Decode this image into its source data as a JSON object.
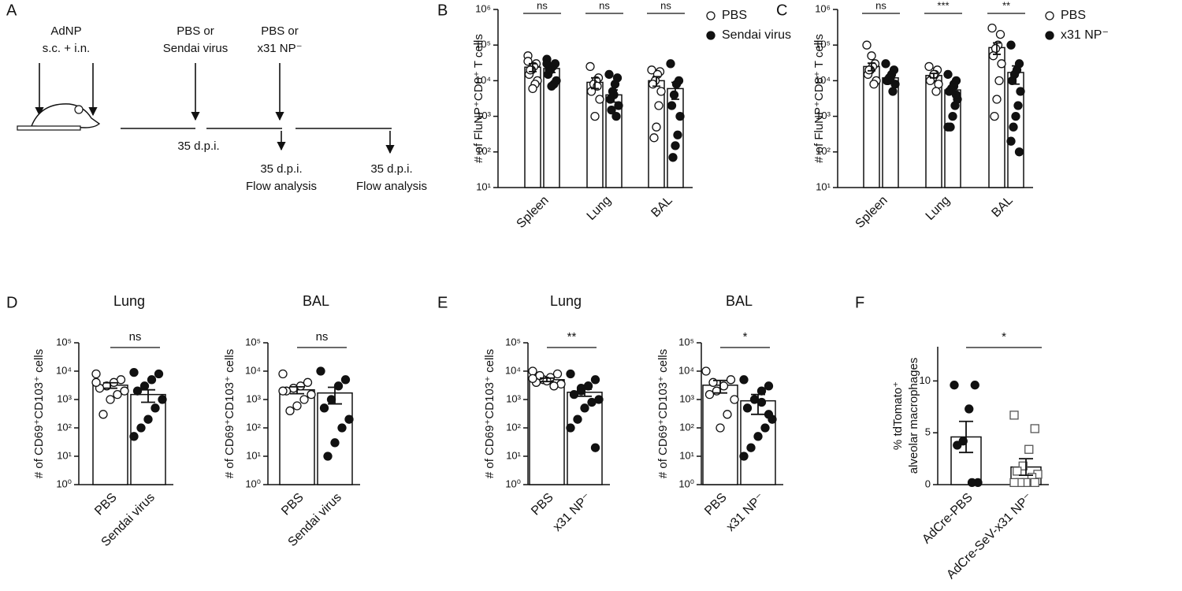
{
  "diagram": {
    "label": "A",
    "prime": [
      "AdNP",
      "s.c. + i.n."
    ],
    "challenge1": [
      "PBS or",
      "Sendai virus"
    ],
    "challenge2": [
      "PBS or",
      "x31 NP⁻"
    ],
    "interval": "35 d.p.i.",
    "readout1": [
      "35 d.p.i.",
      "Flow analysis"
    ],
    "readout2": [
      "35 d.p.i.",
      "Flow analysis"
    ]
  },
  "chart_data": [
    {
      "type": "bar",
      "label": "B",
      "ylabel": "# of FluNP⁺CD8⁺ T cells",
      "log": true,
      "legend": "right",
      "categories": [
        "Spleen",
        "Lung",
        "BAL"
      ],
      "significance": [
        "ns",
        "ns",
        "ns"
      ],
      "ylim": [
        10,
        1000000
      ],
      "yticks": [
        {
          "value": 10,
          "label": "10¹"
        },
        {
          "value": 100,
          "label": "10²"
        },
        {
          "value": 1000,
          "label": "10³"
        },
        {
          "value": 10000,
          "label": "10⁴"
        },
        {
          "value": 100000,
          "label": "10⁵"
        },
        {
          "value": 1000000,
          "label": "10⁶"
        }
      ],
      "series": [
        {
          "name": "PBS",
          "marker": "open-circle",
          "values": [
            24000,
            9000,
            10000
          ],
          "errors": [
            6000,
            3000,
            3000
          ],
          "points": [
            [
              50000,
              30000,
              25000,
              20000,
              15000,
              10000,
              8000,
              6000,
              20000,
              35000
            ],
            [
              25000,
              12000,
              10000,
              8000,
              5000,
              3000,
              7000,
              1000
            ],
            [
              20000,
              18000,
              15000,
              10000,
              8000,
              5000,
              2000,
              500,
              250
            ]
          ]
        },
        {
          "name": "Sendai virus",
          "marker": "filled-circle",
          "values": [
            22000,
            4000,
            6000
          ],
          "errors": [
            5000,
            1500,
            3000
          ],
          "points": [
            [
              40000,
              30000,
              25000,
              20000,
              15000,
              10000,
              8000,
              7000,
              20000,
              30000
            ],
            [
              15000,
              12000,
              8000,
              5000,
              3000,
              2000,
              1000,
              4000,
              1500
            ],
            [
              30000,
              10000,
              8000,
              4000,
              2000,
              1000,
              300,
              150,
              70
            ]
          ]
        }
      ]
    },
    {
      "type": "bar",
      "label": "C",
      "ylabel": "# of FluNP⁺CD8⁺ T cells",
      "log": true,
      "legend": "right",
      "categories": [
        "Spleen",
        "Lung",
        "BAL"
      ],
      "significance": [
        "ns",
        "***",
        "**"
      ],
      "ylim": [
        10,
        1000000
      ],
      "yticks": [
        {
          "value": 10,
          "label": "10¹"
        },
        {
          "value": 100,
          "label": "10²"
        },
        {
          "value": 1000,
          "label": "10³"
        },
        {
          "value": 10000,
          "label": "10⁴"
        },
        {
          "value": 100000,
          "label": "10⁵"
        },
        {
          "value": 1000000,
          "label": "10⁶"
        }
      ],
      "series": [
        {
          "name": "PBS",
          "marker": "open-circle",
          "values": [
            25000,
            14000,
            85000
          ],
          "errors": [
            6000,
            2000,
            30000
          ],
          "points": [
            [
              100000,
              30000,
              25000,
              20000,
              15000,
              10000,
              8000,
              50000,
              20000
            ],
            [
              25000,
              20000,
              15000,
              12000,
              10000,
              8000,
              5000,
              15000
            ],
            [
              300000,
              200000,
              100000,
              80000,
              50000,
              30000,
              10000,
              3000,
              1000
            ]
          ]
        },
        {
          "name": "x31 NP⁻",
          "marker": "filled-circle",
          "values": [
            12000,
            5500,
            17000
          ],
          "errors": [
            2000,
            1200,
            9000
          ],
          "points": [
            [
              30000,
              20000,
              15000,
              12000,
              10000,
              8000,
              5000,
              12000,
              10000
            ],
            [
              15000,
              10000,
              8000,
              6000,
              5000,
              3000,
              2000,
              1000,
              500,
              500,
              4000,
              7000
            ],
            [
              100000,
              30000,
              20000,
              15000,
              10000,
              5000,
              2000,
              1000,
              500,
              200,
              100
            ]
          ]
        }
      ]
    },
    {
      "type": "bar",
      "label": "D",
      "title": "Lung",
      "ylabel": "# of CD69⁺CD103⁺ cells",
      "log": true,
      "categories": [
        "PBS",
        "Sendai virus"
      ],
      "significance": "ns",
      "markers": [
        "open-circle",
        "filled-circle"
      ],
      "ylim": [
        1,
        100000
      ],
      "yticks": [
        {
          "value": 1,
          "label": "10⁰"
        },
        {
          "value": 10,
          "label": "10¹"
        },
        {
          "value": 100,
          "label": "10²"
        },
        {
          "value": 1000,
          "label": "10³"
        },
        {
          "value": 10000,
          "label": "10⁴"
        },
        {
          "value": 100000,
          "label": "10⁵"
        }
      ],
      "values": [
        3200,
        1500
      ],
      "errors": [
        700,
        700
      ],
      "points": [
        [
          8000,
          5000,
          4000,
          3000,
          2500,
          2000,
          1500,
          1000,
          300,
          4000
        ],
        [
          9000,
          8000,
          5000,
          3000,
          2000,
          1000,
          500,
          200,
          100,
          50
        ]
      ]
    },
    {
      "type": "bar",
      "title": "BAL",
      "ylabel": "# of CD69⁺CD103⁺ cells",
      "log": true,
      "categories": [
        "PBS",
        "Sendai virus"
      ],
      "significance": "ns",
      "markers": [
        "open-circle",
        "filled-circle"
      ],
      "ylim": [
        1,
        100000
      ],
      "yticks": [
        {
          "value": 1,
          "label": "10⁰"
        },
        {
          "value": 10,
          "label": "10¹"
        },
        {
          "value": 100,
          "label": "10²"
        },
        {
          "value": 1000,
          "label": "10³"
        },
        {
          "value": 10000,
          "label": "10⁴"
        },
        {
          "value": 100000,
          "label": "10⁵"
        }
      ],
      "values": [
        2200,
        1700
      ],
      "errors": [
        600,
        1000
      ],
      "points": [
        [
          8000,
          4000,
          3000,
          2500,
          2000,
          1500,
          1000,
          600,
          400,
          2000
        ],
        [
          10000,
          5000,
          3000,
          1000,
          500,
          200,
          100,
          30,
          10
        ]
      ]
    },
    {
      "type": "bar",
      "label": "E",
      "title": "Lung",
      "ylabel": "# of CD69⁺CD103⁺ cells",
      "log": true,
      "categories": [
        "PBS",
        "x31 NP⁻"
      ],
      "significance": "**",
      "markers": [
        "open-circle",
        "filled-circle"
      ],
      "ylim": [
        1,
        100000
      ],
      "yticks": [
        {
          "value": 1,
          "label": "10⁰"
        },
        {
          "value": 10,
          "label": "10¹"
        },
        {
          "value": 100,
          "label": "10²"
        },
        {
          "value": 1000,
          "label": "10³"
        },
        {
          "value": 10000,
          "label": "10⁴"
        },
        {
          "value": 100000,
          "label": "10⁵"
        }
      ],
      "values": [
        5000,
        1800
      ],
      "errors": [
        700,
        500
      ],
      "points": [
        [
          10000,
          8000,
          6000,
          5000,
          4000,
          3500,
          3000,
          4500,
          7000,
          5500
        ],
        [
          8000,
          5000,
          3000,
          2000,
          1500,
          1000,
          800,
          500,
          200,
          100,
          20,
          3000,
          2500
        ]
      ]
    },
    {
      "type": "bar",
      "title": "BAL",
      "ylabel": "# of CD69⁺CD103⁺ cells",
      "log": true,
      "categories": [
        "PBS",
        "x31 NP⁻"
      ],
      "significance": "*",
      "markers": [
        "open-circle",
        "filled-circle"
      ],
      "ylim": [
        1,
        100000
      ],
      "yticks": [
        {
          "value": 1,
          "label": "10⁰"
        },
        {
          "value": 10,
          "label": "10¹"
        },
        {
          "value": 100,
          "label": "10²"
        },
        {
          "value": 1000,
          "label": "10³"
        },
        {
          "value": 10000,
          "label": "10⁴"
        },
        {
          "value": 100000,
          "label": "10⁵"
        }
      ],
      "values": [
        3200,
        900
      ],
      "errors": [
        1500,
        600
      ],
      "points": [
        [
          10000,
          5000,
          3000,
          2000,
          1500,
          1000,
          300,
          100,
          4000
        ],
        [
          5000,
          3000,
          2000,
          1000,
          500,
          200,
          100,
          50,
          20,
          10,
          300,
          800
        ]
      ]
    },
    {
      "type": "bar",
      "label": "F",
      "ylabel": [
        "% tdTomato⁺",
        "alveolar macrophages"
      ],
      "log": false,
      "categories": [
        "AdCre-PBS",
        "AdCre-SeV-x31 NP⁻"
      ],
      "significance": "*",
      "markers": [
        "filled-circle",
        "open-square"
      ],
      "ylim": [
        0,
        13.3
      ],
      "yticks": [
        0,
        5,
        10
      ],
      "values": [
        4.6,
        1.7
      ],
      "errors": [
        1.5,
        0.8
      ],
      "points": [
        [
          9.6,
          9.6,
          7.3,
          4.2,
          3.8,
          0.2,
          0.2
        ],
        [
          6.7,
          5.4,
          3.4,
          1.8,
          1.3,
          1.0,
          0.7,
          0.2,
          0.2,
          0.2,
          0.2
        ]
      ]
    }
  ]
}
